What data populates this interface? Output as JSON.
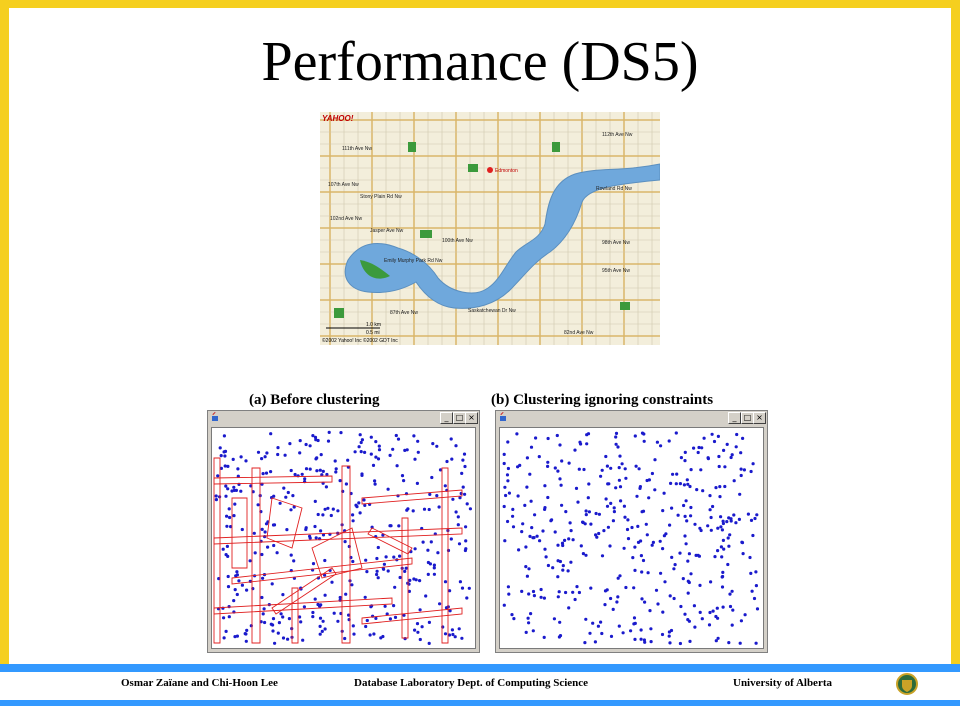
{
  "slide": {
    "title": "Performance (DS5)",
    "accent_color": "#f5cf1f",
    "footer_bar_color": "#3399ff"
  },
  "map": {
    "logo": "YAHOO!",
    "copyright": "©2002 Yahoo! Inc ©2002 GDT Inc",
    "scale_km": "1.0 km",
    "scale_mi": "0.5 mi",
    "labels": [
      "111th Ave Nw",
      "107th Ave Nw",
      "Stony Plain Rd Nw",
      "102nd Ave Nw",
      "100th Ave Nw",
      "Jasper Ave Nw",
      "87th Ave Nw",
      "Emily Murphy Park Rd Nw",
      "Saskatchewan Dr Nw",
      "Rowland Rd Nw",
      "98th Ave Nw",
      "95th Ave Nw",
      "112th Ave Nw",
      "82nd Ave Nw",
      "Edmonton"
    ]
  },
  "panels": {
    "a_caption": "(a) Before clustering",
    "b_caption": "(b) Clustering ignoring constraints"
  },
  "window": {
    "min_label": "_",
    "max_label": "□",
    "close_label": "×"
  },
  "icons": {
    "app": "java-cup-icon",
    "crest": "university-crest-icon"
  },
  "footer": {
    "authors": "Osmar Zaïane and Chi-Hoon Lee",
    "lab": "Database Laboratory  Dept. of Computing Science",
    "university": "University of Alberta"
  },
  "colors": {
    "points": "#1a1acc",
    "constraints": "#e02020",
    "river": "#6fa8dc",
    "park": "#3c9a3c"
  }
}
